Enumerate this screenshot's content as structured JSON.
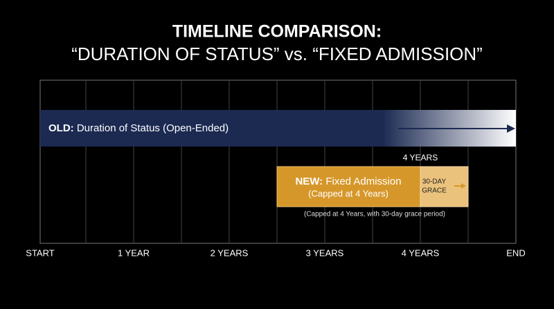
{
  "header": {
    "title": "TIMELINE COMPARISON:",
    "subtitle": "“DURATION OF STATUS” vs. “FIXED ADMISSION”"
  },
  "axis": {
    "labels": [
      "START",
      "1 YEAR",
      "2 YEARS",
      "3 YEARS",
      "4 YEARS",
      "END"
    ]
  },
  "old_bar": {
    "tag": "OLD:",
    "label": "Duration of Status (Open-Ended)"
  },
  "new_bar": {
    "marker": "4 YEARS",
    "tag": "NEW:",
    "label": "Fixed Admission",
    "sublabel": "(Capped at 4 Years)",
    "caption": "(Capped at 4 Years, with 30-day grace period)"
  },
  "grace": {
    "line1": "30-DAY",
    "line2": "GRACE"
  }
}
